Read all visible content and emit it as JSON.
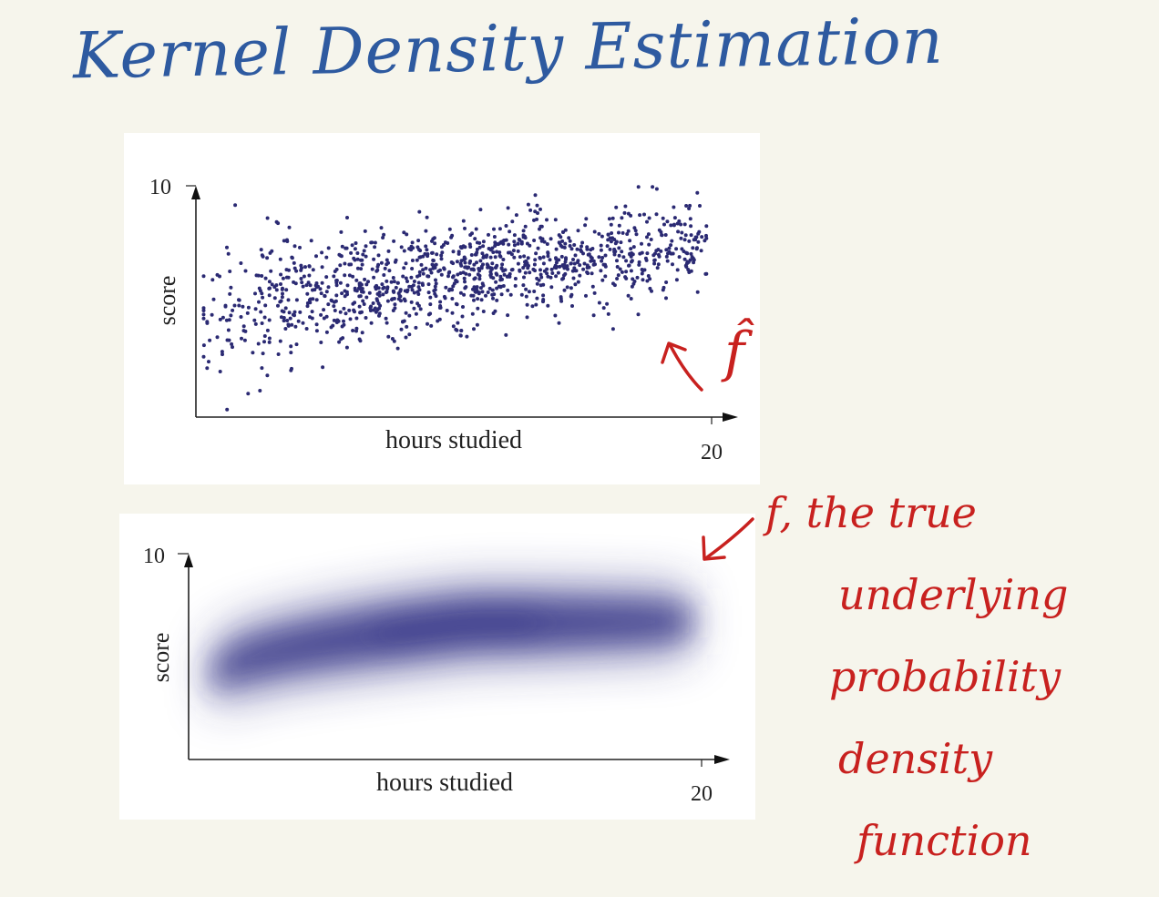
{
  "title": "Kernel Density Estimation",
  "annotations": {
    "estimate_symbol": "f̂",
    "true_density_lines": [
      "f, the true",
      "underlying",
      "probability",
      "density",
      "function"
    ]
  },
  "colors": {
    "background": "#f6f5ec",
    "title_ink": "#2e5aa0",
    "annotation_ink": "#c8211f",
    "points": "#2b2a73",
    "density": "#2e2f82"
  },
  "chart_data": [
    {
      "type": "scatter",
      "xlabel": "hours studied",
      "ylabel": "score",
      "x_tick_labels": [
        "20"
      ],
      "y_tick_labels": [
        "10"
      ],
      "xlim": [
        0,
        20
      ],
      "ylim": [
        0,
        10
      ],
      "n_points": 1200,
      "trend": {
        "score_at_x0": 4.2,
        "score_at_x20": 7.4
      },
      "x_range_of_points": [
        0.3,
        19.8
      ],
      "score_spread_sd": 1.3
    },
    {
      "type": "heatmap",
      "xlabel": "hours studied",
      "ylabel": "score",
      "x_tick_labels": [
        "20"
      ],
      "y_tick_labels": [
        "10"
      ],
      "xlim": [
        0,
        20
      ],
      "ylim": [
        0,
        10
      ],
      "density_ridge": {
        "score_at_x1": 3.9,
        "score_at_x11": 6.6,
        "score_at_x19": 6.7
      },
      "x_extent": [
        1,
        19.5
      ]
    }
  ]
}
